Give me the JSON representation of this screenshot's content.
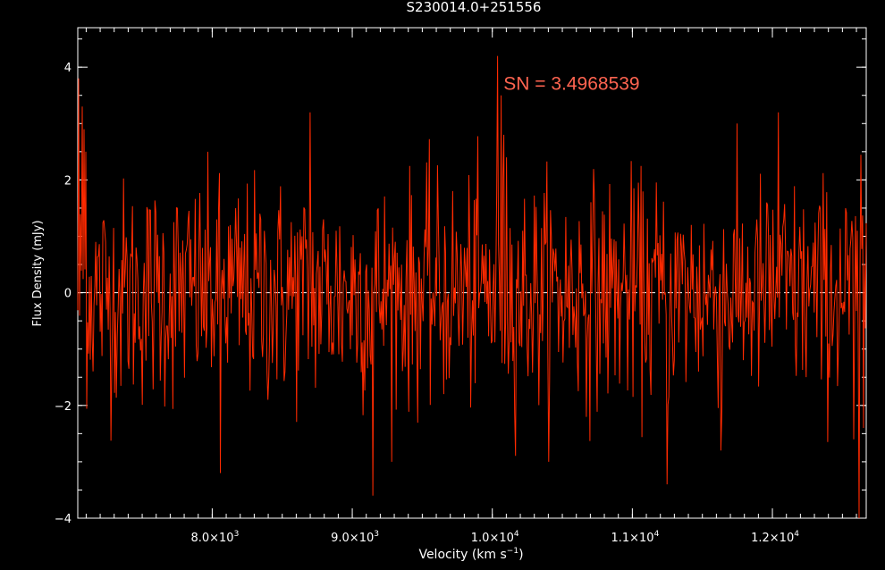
{
  "chart_data": {
    "type": "line",
    "title": "S230014.0+251556",
    "xlabel": "Velocity (km s",
    "xlabel_sup": "−1",
    "xlabel_end": ")",
    "ylabel": "Flux Density (mJy)",
    "xlim": [
      7040,
      12670
    ],
    "ylim": [
      -4.0,
      4.7
    ],
    "x_ticks": [
      {
        "value": 8000,
        "label_mant": "8.0×10",
        "label_exp": "3"
      },
      {
        "value": 9000,
        "label_mant": "9.0×10",
        "label_exp": "3"
      },
      {
        "value": 10000,
        "label_mant": "1.0×10",
        "label_exp": "4"
      },
      {
        "value": 11000,
        "label_mant": "1.1×10",
        "label_exp": "4"
      },
      {
        "value": 12000,
        "label_mant": "1.2×10",
        "label_exp": "4"
      }
    ],
    "x_minor_step": 100,
    "y_ticks": [
      {
        "value": -4,
        "label": "−4"
      },
      {
        "value": -2,
        "label": "−2"
      },
      {
        "value": 0,
        "label": "0"
      },
      {
        "value": 2,
        "label": "2"
      },
      {
        "value": 4,
        "label": "4"
      }
    ],
    "y_minor_step": 0.5,
    "zero_line": {
      "y": 0,
      "style": "dashed",
      "color": "#ffffff"
    },
    "annotation": {
      "text": "SN = 3.4968539",
      "x": 10080,
      "y": 3.6,
      "color": "#ff6450"
    },
    "series": [
      {
        "color": "#ff2a00",
        "noise_sigma": 1.0,
        "n_points": 880,
        "features": [
          {
            "x": 7045,
            "y": 3.8
          },
          {
            "x": 7070,
            "y": 3.3
          },
          {
            "x": 7085,
            "y": 2.9
          },
          {
            "x": 7100,
            "y": 2.5
          },
          {
            "x": 8060,
            "y": -3.2
          },
          {
            "x": 8700,
            "y": 3.2
          },
          {
            "x": 9150,
            "y": -3.6
          },
          {
            "x": 10040,
            "y": 4.2
          },
          {
            "x": 10060,
            "y": 3.5
          },
          {
            "x": 10080,
            "y": 2.8
          },
          {
            "x": 10100,
            "y": 2.4
          },
          {
            "x": 11250,
            "y": -3.4
          },
          {
            "x": 11630,
            "y": -2.8
          },
          {
            "x": 12040,
            "y": 3.2
          },
          {
            "x": 12580,
            "y": -2.6
          },
          {
            "x": 12620,
            "y": -4.0
          },
          {
            "x": 12650,
            "y": -2.4
          }
        ]
      }
    ]
  }
}
